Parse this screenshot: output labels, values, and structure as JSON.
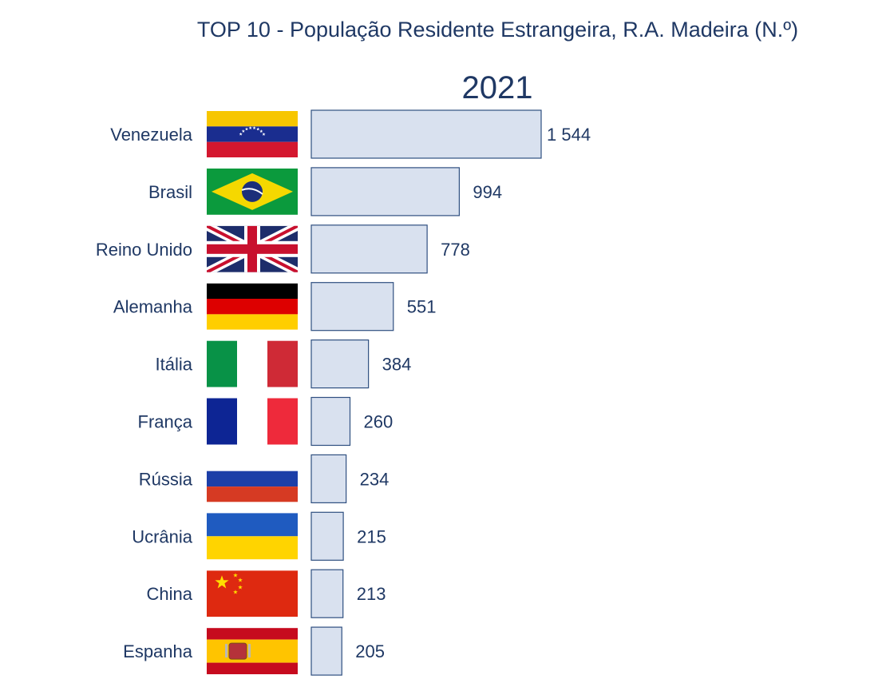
{
  "chart_data": {
    "type": "bar",
    "orientation": "horizontal",
    "title": "TOP 10 - População Residente Estrangeira, R.A. Madeira (N.º)",
    "subtitle": "2021",
    "categories": [
      "Venezuela",
      "Brasil",
      "Reino Unido",
      "Alemanha",
      "Itália",
      "França",
      "Rússia",
      "Ucrânia",
      "China",
      "Espanha"
    ],
    "values": [
      1544,
      994,
      778,
      551,
      384,
      260,
      234,
      215,
      213,
      205
    ],
    "value_labels": [
      "1 544",
      "994",
      "778",
      "551",
      "384",
      "260",
      "234",
      "215",
      "213",
      "205"
    ],
    "flags": [
      "venezuela-flag",
      "brazil-flag",
      "united-kingdom-flag",
      "germany-flag",
      "italy-flag",
      "france-flag",
      "russia-flag",
      "ukraine-flag",
      "china-flag",
      "spain-flag"
    ],
    "xlim": [
      0,
      1544
    ],
    "grid": false,
    "legend": "none",
    "colors": {
      "bar_fill": "#d9e1ef",
      "bar_stroke": "#2f4f80",
      "text": "#1f3864"
    }
  }
}
